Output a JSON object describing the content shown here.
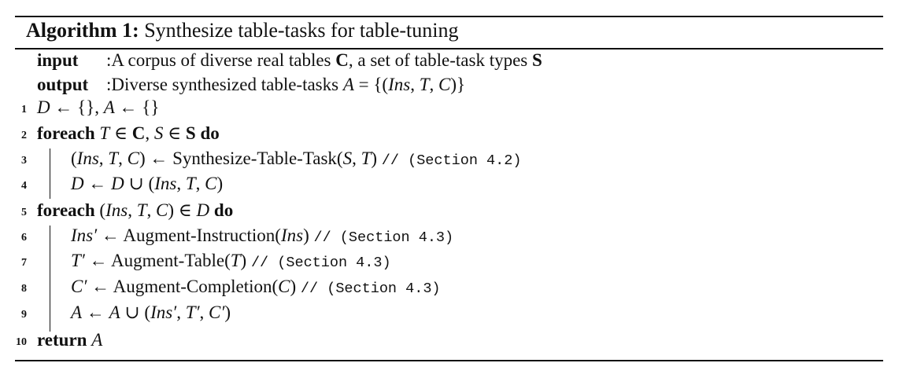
{
  "algorithm": {
    "label": "Algorithm 1:",
    "title": "Synthesize table-tasks for table-tuning",
    "io": [
      {
        "key": "input",
        "text": ":A corpus of diverse real tables C, a set of table-task types S"
      },
      {
        "key": "output",
        "text": ":Diverse synthesized table-tasks A = {(Ins, T, C)}"
      }
    ],
    "lines": [
      {
        "n": "1",
        "text": "D ← {}, A ← {}"
      },
      {
        "n": "2",
        "text": "foreach T ∈ C, S ∈ S do"
      },
      {
        "n": "3",
        "text": "(Ins, T, C) ← Synthesize-Table-Task(S, T) // (Section 4.2)"
      },
      {
        "n": "4",
        "text": "D ← D ∪ (Ins, T, C)"
      },
      {
        "n": "5",
        "text": "foreach (Ins, T, C) ∈ D do"
      },
      {
        "n": "6",
        "text": "Ins′ ← Augment-Instruction(Ins) // (Section 4.3)"
      },
      {
        "n": "7",
        "text": "T′ ← Augment-Table(T) // (Section 4.3)"
      },
      {
        "n": "8",
        "text": "C′ ← Augment-Completion(C) // (Section 4.3)"
      },
      {
        "n": "9",
        "text": "A ← A ∪ (Ins′, T′, C′)"
      },
      {
        "n": "10",
        "text": "return A"
      }
    ]
  }
}
